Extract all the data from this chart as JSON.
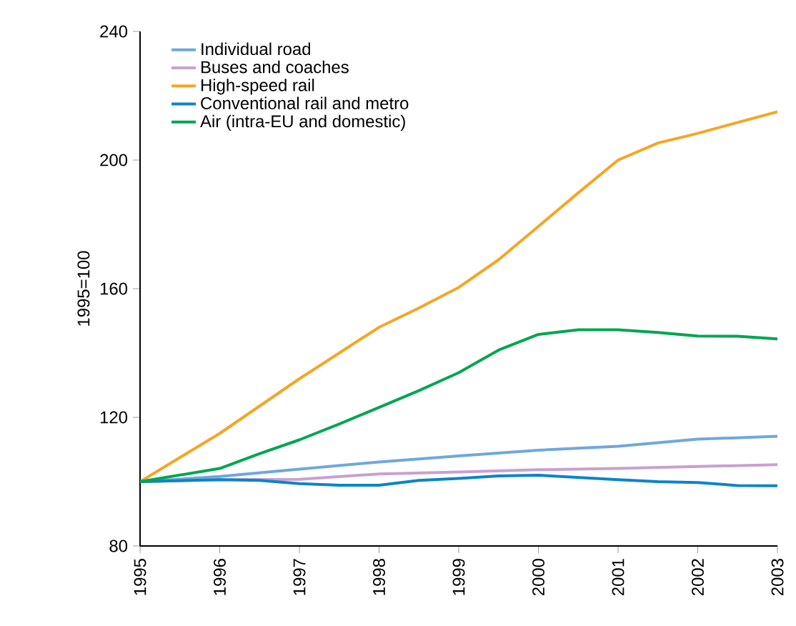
{
  "chart_data": {
    "type": "line",
    "ylabel": "1995=100",
    "xlim": [
      1995,
      2003
    ],
    "ylim": [
      80,
      240
    ],
    "xticks": [
      1995,
      1996,
      1997,
      1998,
      1999,
      2000,
      2001,
      2002,
      2003
    ],
    "yticks": [
      80,
      120,
      160,
      200,
      240
    ],
    "grid": false,
    "legend": "top left",
    "marker": "none",
    "line_style": "solid",
    "series": [
      {
        "name": "Individual road",
        "color": "#6fa8dc",
        "x": [
          1995,
          1996,
          1997,
          1998,
          1999,
          2000,
          2001,
          2002,
          2003
        ],
        "values": [
          100,
          101.6,
          103.9,
          106.1,
          108,
          109.8,
          111,
          113.2,
          114.1
        ]
      },
      {
        "name": "Buses and coaches",
        "color": "#c9a0d0",
        "x": [
          1995,
          1996,
          1997,
          1998,
          1999,
          2000,
          2001,
          2002,
          2003
        ],
        "values": [
          100,
          100.6,
          100.7,
          102.4,
          103,
          103.7,
          104.1,
          104.7,
          105.3
        ]
      },
      {
        "name": "High-speed rail",
        "color": "#f5a623",
        "x": [
          1995,
          1996,
          1997,
          1997.5,
          1998,
          1998.5,
          1999,
          1999.5,
          2000,
          2000.5,
          2001,
          2001.5,
          2002,
          2002.5,
          2003
        ],
        "values": [
          100,
          115,
          132,
          140,
          148,
          154,
          160.4,
          169,
          179.4,
          189.8,
          200,
          205.3,
          208.3,
          211.7,
          215
        ]
      },
      {
        "name": "Conventional rail and metro",
        "color": "#0a85c8",
        "x": [
          1995,
          1996,
          1996.5,
          1997,
          1997.5,
          1998,
          1998.5,
          1999,
          1999.5,
          2000,
          2000.5,
          2001,
          2001.5,
          2002,
          2002.5,
          2003
        ],
        "values": [
          100,
          100.6,
          100.4,
          99.4,
          98.9,
          98.9,
          100.4,
          101,
          101.8,
          102,
          101.3,
          100.6,
          100,
          99.7,
          98.8,
          98.7
        ]
      },
      {
        "name": "Air (intra-EU and domestic)",
        "color": "#00a651",
        "x": [
          1995,
          1996,
          1996.5,
          1997,
          1997.5,
          1998,
          1998.5,
          1999,
          1999.5,
          2000,
          2000.5,
          2001,
          2001.5,
          2002,
          2002.5,
          2003
        ],
        "values": [
          100,
          104.1,
          108.7,
          113,
          117.9,
          123.1,
          128.3,
          133.9,
          140.9,
          145.8,
          147.2,
          147.2,
          146.4,
          145.3,
          145.2,
          144.4
        ]
      }
    ]
  }
}
